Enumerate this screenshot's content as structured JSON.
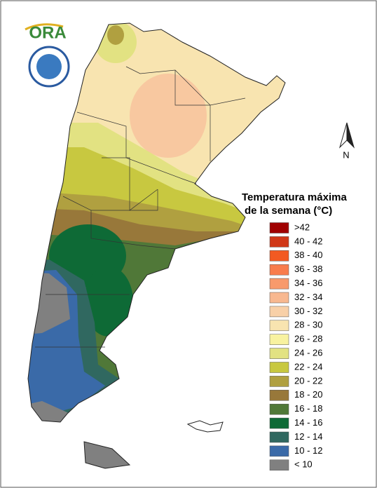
{
  "logo": {
    "text": "ORA"
  },
  "north": "N",
  "legend": {
    "title": [
      "Temperatura máxima",
      "de la semana (°C)"
    ],
    "items": [
      {
        "label": ">42",
        "color": "#a00000"
      },
      {
        "label": "40 - 42",
        "color": "#d03818"
      },
      {
        "label": "38 - 40",
        "color": "#f25a22"
      },
      {
        "label": "36 - 38",
        "color": "#f87c4c"
      },
      {
        "label": "34 - 36",
        "color": "#f89a6c"
      },
      {
        "label": "32 - 34",
        "color": "#f8b890"
      },
      {
        "label": "30 - 32",
        "color": "#f8d0a8"
      },
      {
        "label": "28 - 30",
        "color": "#f8e4b0"
      },
      {
        "label": "26 - 28",
        "color": "#f8f2a0"
      },
      {
        "label": "24 - 26",
        "color": "#e2e282"
      },
      {
        "label": "22 - 24",
        "color": "#c8c840"
      },
      {
        "label": "20 - 22",
        "color": "#b0a040"
      },
      {
        "label": "18 - 20",
        "color": "#98783a"
      },
      {
        "label": "16 - 18",
        "color": "#507838"
      },
      {
        "label": "14 - 16",
        "color": "#0e6a36"
      },
      {
        "label": "12 - 14",
        "color": "#306860"
      },
      {
        "label": "10 - 12",
        "color": "#3a6aa8"
      },
      {
        "label": "< 10",
        "color": "#808080"
      }
    ]
  }
}
